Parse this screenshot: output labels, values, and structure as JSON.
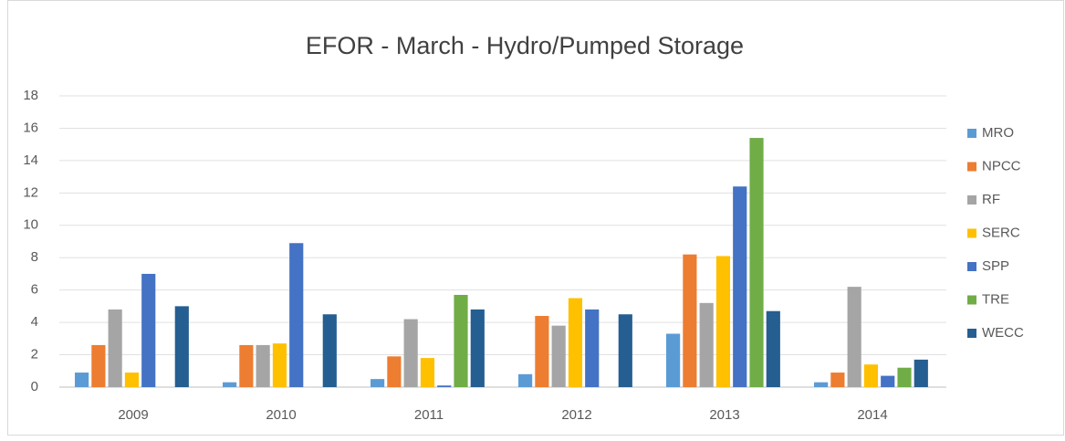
{
  "chart_data": {
    "type": "bar",
    "title": "EFOR - March - Hydro/Pumped  Storage",
    "categories": [
      "2009",
      "2010",
      "2011",
      "2012",
      "2013",
      "2014"
    ],
    "series": [
      {
        "name": "MRO",
        "color": "#5b9bd5",
        "values": [
          0.9,
          0.3,
          0.5,
          0.8,
          3.3,
          0.3
        ]
      },
      {
        "name": "NPCC",
        "color": "#ed7d31",
        "values": [
          2.6,
          2.6,
          1.9,
          4.4,
          8.2,
          0.9
        ]
      },
      {
        "name": "RF",
        "color": "#a5a5a5",
        "values": [
          4.8,
          2.6,
          4.2,
          3.8,
          5.2,
          6.2
        ]
      },
      {
        "name": "SERC",
        "color": "#ffc000",
        "values": [
          0.9,
          2.7,
          1.8,
          5.5,
          8.1,
          1.4
        ]
      },
      {
        "name": "SPP",
        "color": "#4472c4",
        "values": [
          7.0,
          8.9,
          0.1,
          4.8,
          12.4,
          0.7
        ]
      },
      {
        "name": "TRE",
        "color": "#70ad47",
        "values": [
          null,
          null,
          5.7,
          null,
          15.4,
          1.2
        ]
      },
      {
        "name": "WECC",
        "color": "#255e91",
        "values": [
          5.0,
          4.5,
          4.8,
          4.5,
          4.7,
          1.7
        ]
      }
    ],
    "ylim": [
      0,
      18
    ],
    "yticks": [
      0,
      2,
      4,
      6,
      8,
      10,
      12,
      14,
      16,
      18
    ],
    "grid": true,
    "legend": "right"
  }
}
